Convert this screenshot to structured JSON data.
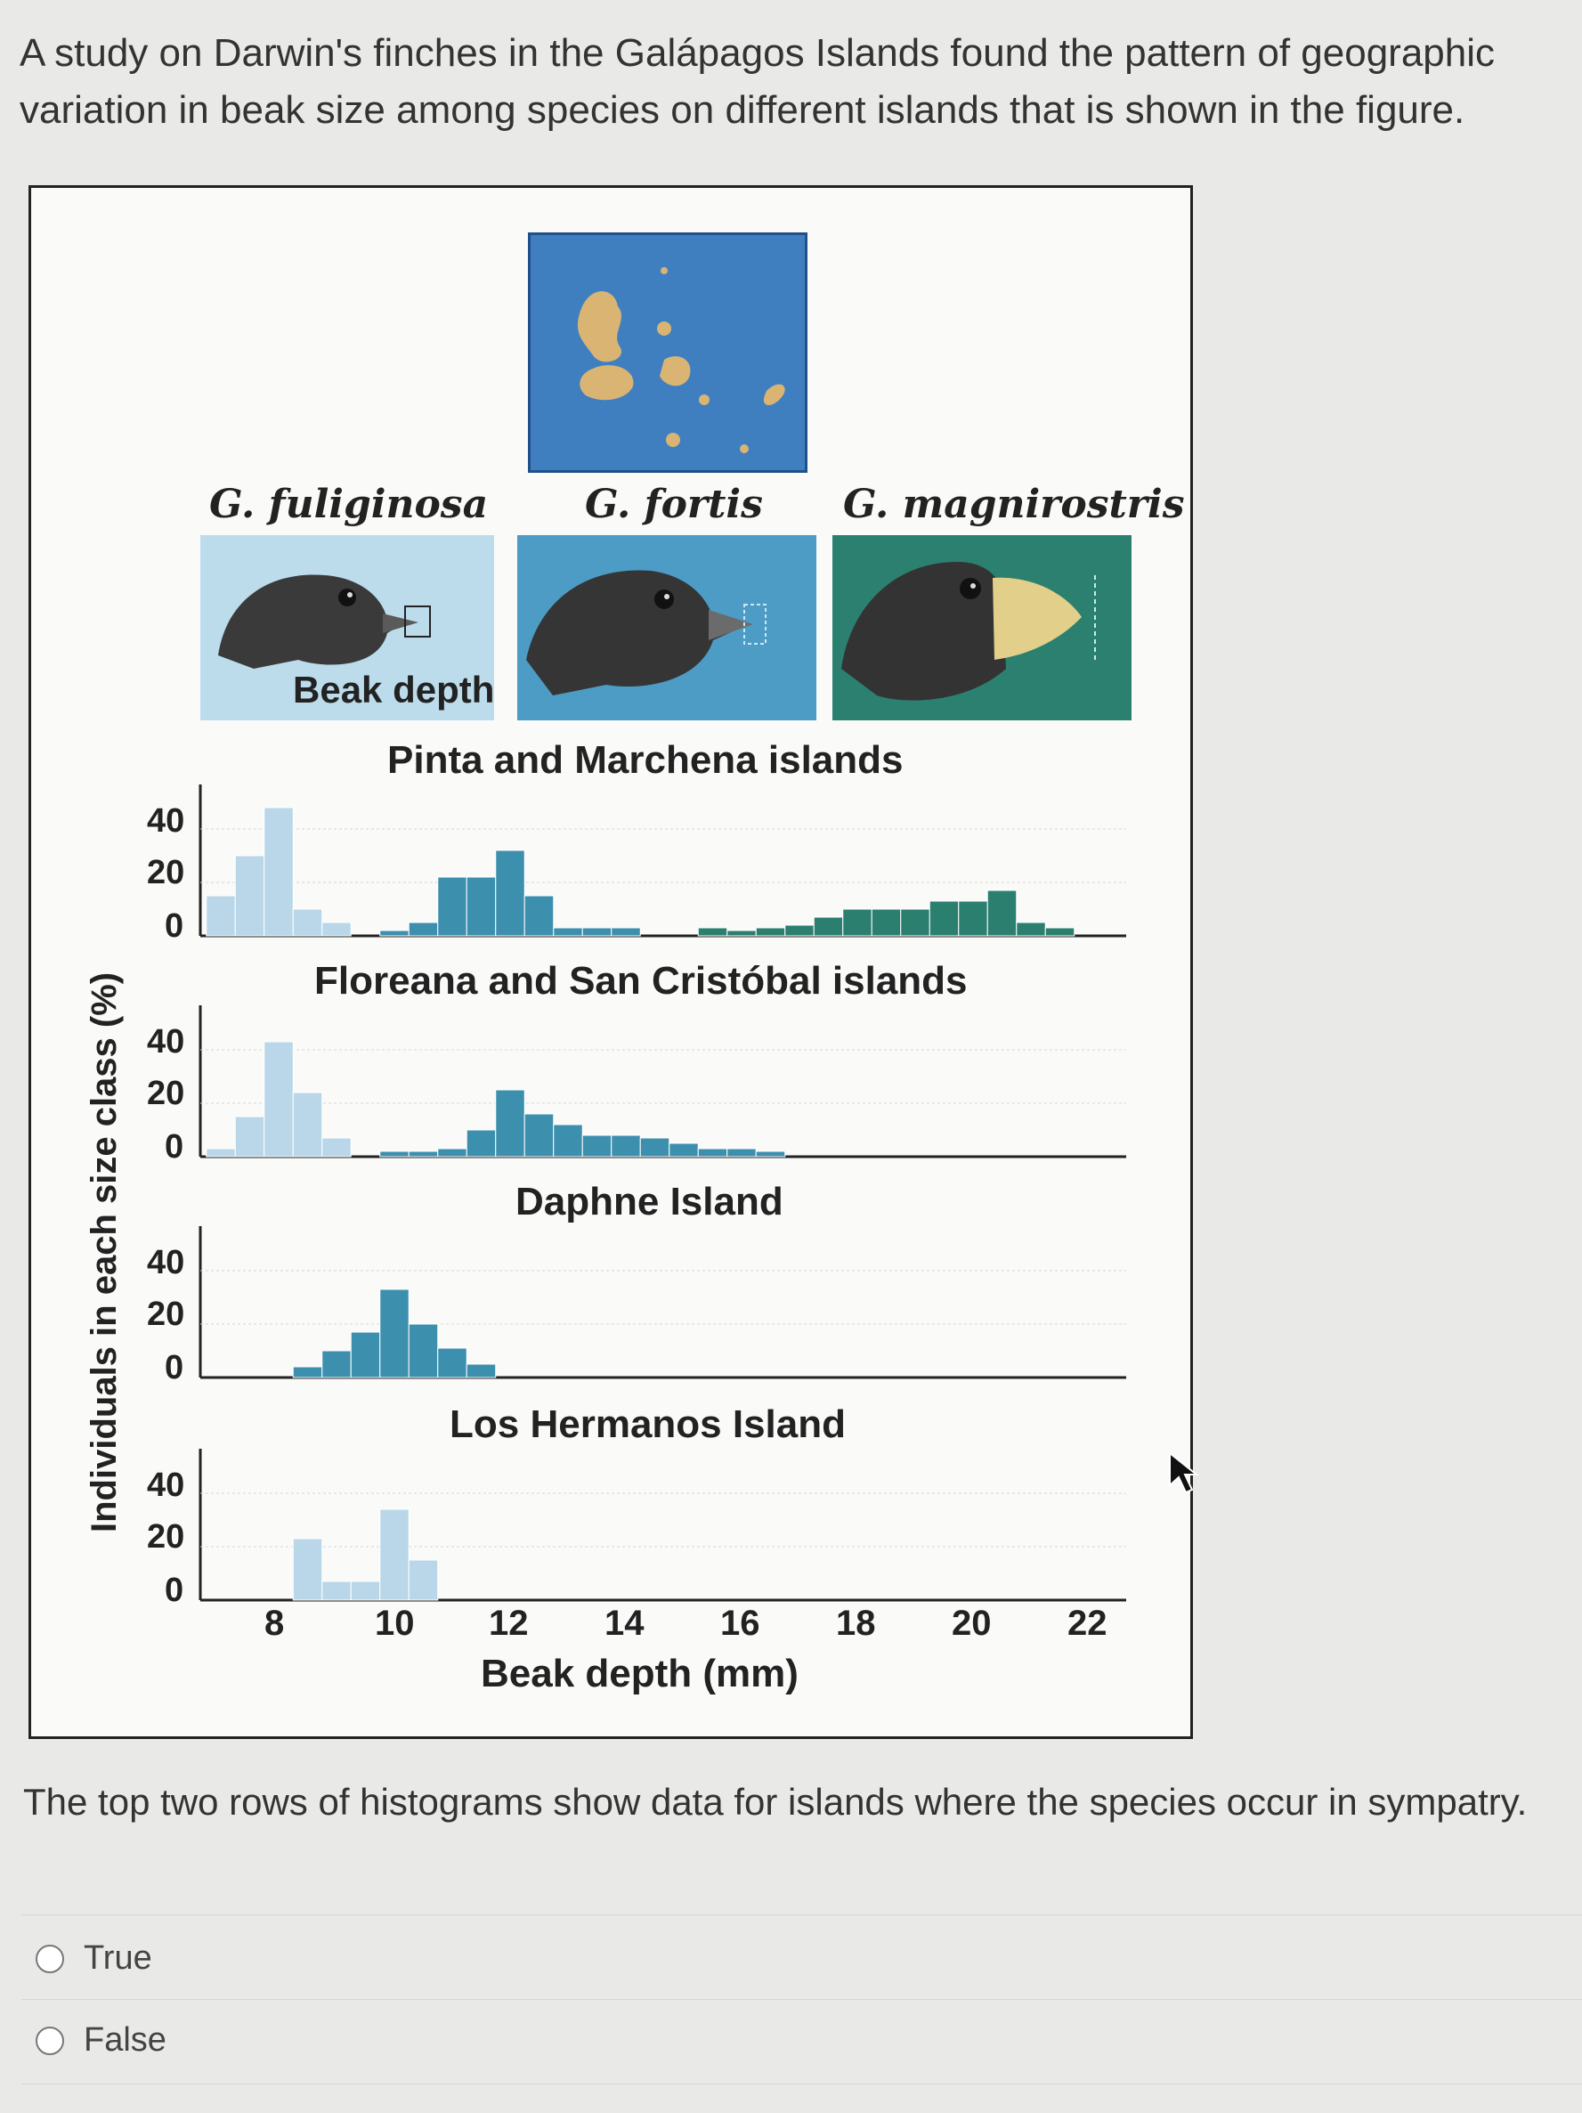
{
  "question": {
    "intro": "A study on Darwin's finches in the Galápagos Islands found the pattern of geographic variation in beak size among species on different islands that is shown in the figure.",
    "statement": "The top two rows of histograms show data for islands where the species occur in sympatry."
  },
  "options": [
    {
      "label": "True",
      "selected": false
    },
    {
      "label": "False",
      "selected": false
    }
  ],
  "figure": {
    "species": [
      "G. fuliginosa",
      "G. fortis",
      "G. magnirostris"
    ],
    "beak_depth_label": "Beak depth",
    "islands": [
      "Pinta and Marchena islands",
      "Floreana and San Cristóbal islands",
      "Daphne Island",
      "Los Hermanos Island"
    ],
    "y_axis_label": "Individuals in each size class (%)",
    "y_ticks": [
      "40",
      "20",
      "0"
    ],
    "x_ticks": [
      "8",
      "10",
      "12",
      "14",
      "16",
      "18",
      "20",
      "22"
    ],
    "x_axis_label": "Beak depth (mm)",
    "colors": {
      "fuliginosa": "#b9d7e8",
      "fortis": "#3d8fae",
      "magnirostris": "#2b7f6e",
      "fuliginosa_panel": "#bcdcec",
      "fortis_panel": "#4c9cc6",
      "magnirostris_panel": "#2b8070"
    }
  },
  "chart_data": [
    {
      "type": "bar",
      "title": "Pinta and Marchena islands",
      "xlabel": "Beak depth (mm)",
      "ylabel": "Individuals in each size class (%)",
      "xlim": [
        6.5,
        23
      ],
      "ylim": [
        0,
        50
      ],
      "series": [
        {
          "name": "G. fuliginosa",
          "x": [
            7,
            7.5,
            8,
            8.5,
            9
          ],
          "values": [
            15,
            30,
            48,
            10,
            5
          ]
        },
        {
          "name": "G. fortis",
          "x": [
            10,
            10.5,
            11,
            11.5,
            12,
            12.5,
            13,
            13.5,
            14
          ],
          "values": [
            2,
            5,
            22,
            22,
            32,
            15,
            3,
            3,
            3
          ]
        },
        {
          "name": "G. magnirostris",
          "x": [
            15.5,
            16,
            16.5,
            17,
            17.5,
            18,
            18.5,
            19,
            19.5,
            20,
            20.5,
            21,
            21.5
          ],
          "values": [
            3,
            2,
            3,
            4,
            7,
            10,
            10,
            10,
            13,
            13,
            17,
            5,
            3
          ]
        }
      ]
    },
    {
      "type": "bar",
      "title": "Floreana and San Cristóbal islands",
      "xlabel": "Beak depth (mm)",
      "ylabel": "Individuals in each size class (%)",
      "xlim": [
        6.5,
        23
      ],
      "ylim": [
        0,
        50
      ],
      "series": [
        {
          "name": "G. fuliginosa",
          "x": [
            7,
            7.5,
            8,
            8.5,
            9
          ],
          "values": [
            3,
            15,
            43,
            24,
            7
          ]
        },
        {
          "name": "G. fortis",
          "x": [
            10,
            10.5,
            11,
            11.5,
            12,
            12.5,
            13,
            13.5,
            14,
            14.5,
            15,
            15.5,
            16,
            16.5
          ],
          "values": [
            2,
            2,
            3,
            10,
            25,
            16,
            12,
            8,
            8,
            7,
            5,
            3,
            3,
            2
          ]
        }
      ]
    },
    {
      "type": "bar",
      "title": "Daphne Island",
      "xlabel": "Beak depth (mm)",
      "ylabel": "Individuals in each size class (%)",
      "xlim": [
        6.5,
        23
      ],
      "ylim": [
        0,
        50
      ],
      "series": [
        {
          "name": "G. fortis",
          "x": [
            8.5,
            9,
            9.5,
            10,
            10.5,
            11,
            11.5
          ],
          "values": [
            4,
            10,
            17,
            33,
            20,
            11,
            5
          ]
        }
      ]
    },
    {
      "type": "bar",
      "title": "Los Hermanos Island",
      "xlabel": "Beak depth (mm)",
      "ylabel": "Individuals in each size class (%)",
      "xlim": [
        6.5,
        23
      ],
      "ylim": [
        0,
        50
      ],
      "series": [
        {
          "name": "G. fuliginosa",
          "x": [
            8.5,
            9,
            9.5,
            10,
            10.5,
            11
          ],
          "values": [
            23,
            7,
            7,
            34,
            15,
            0
          ]
        }
      ]
    }
  ]
}
